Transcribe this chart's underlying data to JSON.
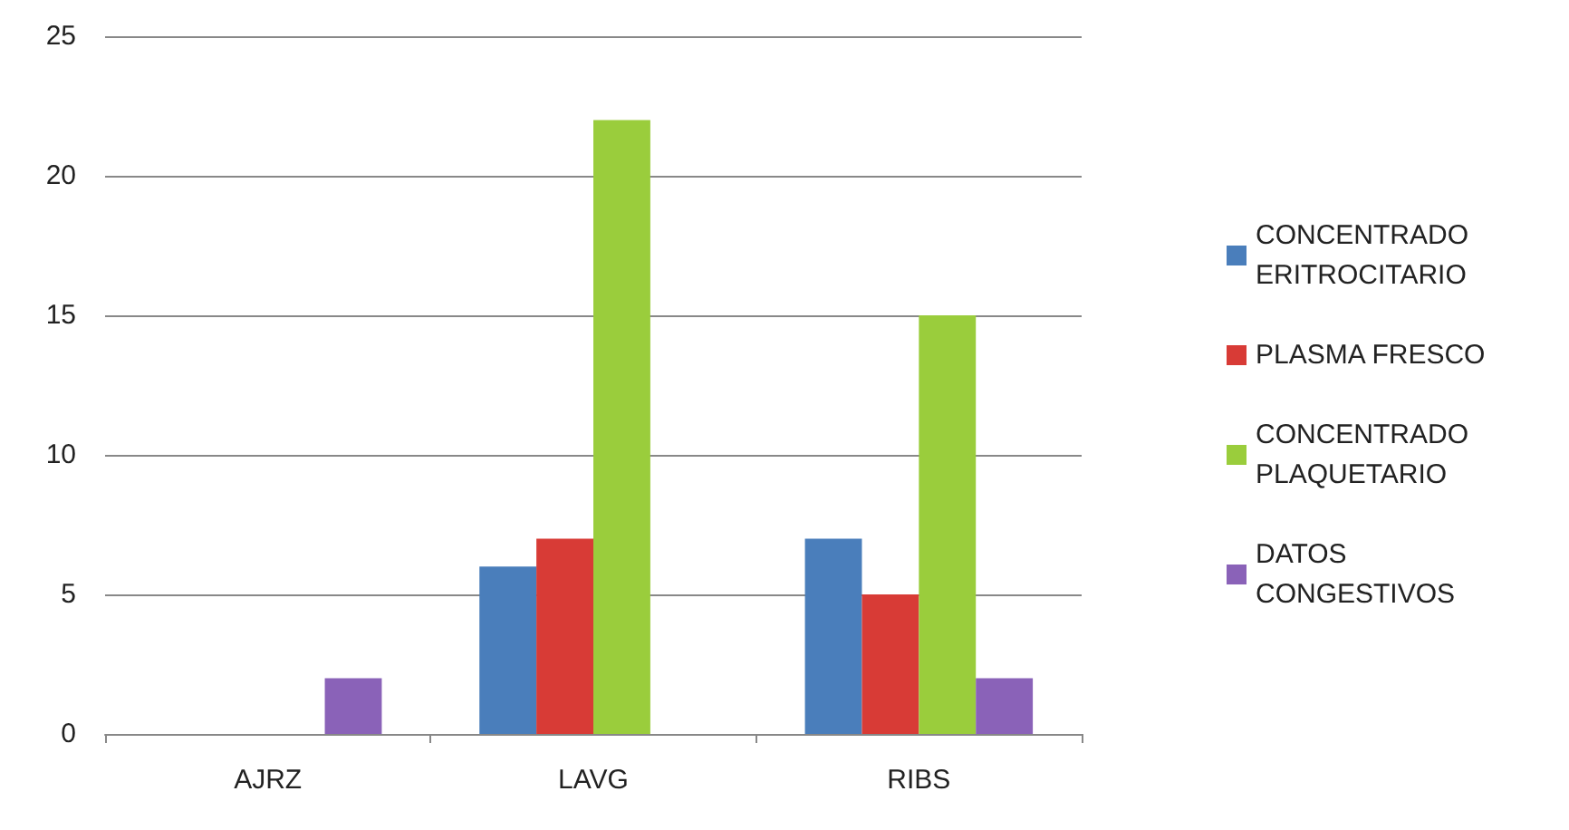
{
  "chart_data": {
    "type": "bar",
    "categories": [
      "AJRZ",
      "LAVG",
      "RIBS"
    ],
    "series": [
      {
        "name": "CONCENTRADO ERITROCITARIO",
        "color": "#4a7ebb",
        "values": [
          0,
          6,
          7
        ]
      },
      {
        "name": "PLASMA FRESCO",
        "color": "#d83b36",
        "values": [
          0,
          7,
          5
        ]
      },
      {
        "name": "CONCENTRADO PLAQUETARIO",
        "color": "#9acd3c",
        "values": [
          0,
          22,
          15
        ]
      },
      {
        "name": "DATOS CONGESTIVOS",
        "color": "#8a62b8",
        "values": [
          2,
          0,
          2
        ]
      }
    ],
    "ylim": [
      0,
      25
    ],
    "yticks": [
      0,
      5,
      10,
      15,
      20,
      25
    ],
    "grid": "y",
    "legend": "right"
  }
}
